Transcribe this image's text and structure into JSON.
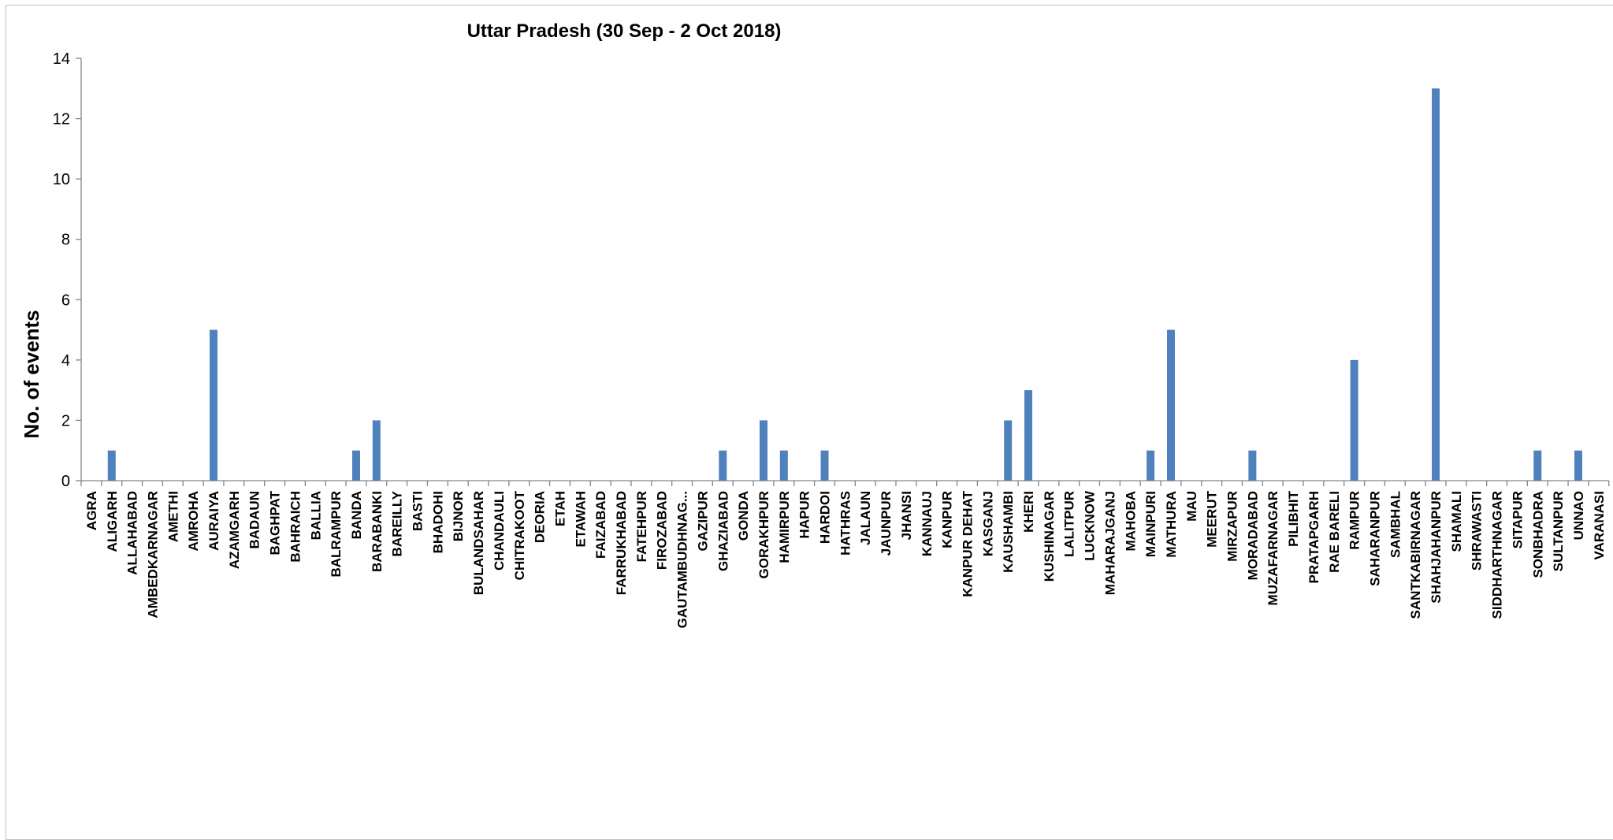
{
  "chart_data": {
    "type": "bar",
    "title": "Uttar Pradesh (30 Sep - 2 Oct 2018)",
    "xlabel": "",
    "ylabel": "No. of events",
    "ylim": [
      0,
      14
    ],
    "yticks": [
      0,
      2,
      4,
      6,
      8,
      10,
      12,
      14
    ],
    "grid": false,
    "legend": "none",
    "bar_color": "#4f81bd",
    "categories": [
      "AGRA",
      "ALIGARH",
      "ALLAHABAD",
      "AMBEDKARNAGAR",
      "AMETHI",
      "AMROHA",
      "AURAIYA",
      "AZAMGARH",
      "BADAUN",
      "BAGHPAT",
      "BAHRAICH",
      "BALLIA",
      "BALRAMPUR",
      "BANDA",
      "BARABANKI",
      "BAREILLY",
      "BASTI",
      "BHADOHI",
      "BIJNOR",
      "BULANDSAHAR",
      "CHANDAULI",
      "CHITRAKOOT",
      "DEORIA",
      "ETAH",
      "ETAWAH",
      "FAIZABAD",
      "FARRUKHABAD",
      "FATEHPUR",
      "FIROZABAD",
      "GAUTAMBUDHNAG...",
      "GAZIPUR",
      "GHAZIABAD",
      "GONDA",
      "GORAKHPUR",
      "HAMIRPUR",
      "HAPUR",
      "HARDOI",
      "HATHRAS",
      "JALAUN",
      "JAUNPUR",
      "JHANSI",
      "KANNAUJ",
      "KANPUR",
      "KANPUR DEHAT",
      "KASGANJ",
      "KAUSHAMBI",
      "KHERI",
      "KUSHINAGAR",
      "LALITPUR",
      "LUCKNOW",
      "MAHARAJGANJ",
      "MAHOBA",
      "MAINPURI",
      "MATHURA",
      "MAU",
      "MEERUT",
      "MIRZAPUR",
      "MORADABAD",
      "MUZAFARNAGAR",
      "PILIBHIT",
      "PRATAPGARH",
      "RAE BARELI",
      "RAMPUR",
      "SAHARANPUR",
      "SAMBHAL",
      "SANTKABIRNAGAR",
      "SHAHJAHANPUR",
      "SHAMALI",
      "SHRAWASTI",
      "SIDDHARTHNAGAR",
      "SITAPUR",
      "SONBHADRA",
      "SULTANPUR",
      "UNNAO",
      "VARANASI"
    ],
    "values": [
      0,
      1,
      0,
      0,
      0,
      0,
      5,
      0,
      0,
      0,
      0,
      0,
      0,
      1,
      2,
      0,
      0,
      0,
      0,
      0,
      0,
      0,
      0,
      0,
      0,
      0,
      0,
      0,
      0,
      0,
      0,
      1,
      0,
      2,
      1,
      0,
      1,
      0,
      0,
      0,
      0,
      0,
      0,
      0,
      0,
      2,
      3,
      0,
      0,
      0,
      0,
      0,
      1,
      5,
      0,
      0,
      0,
      1,
      0,
      0,
      0,
      0,
      4,
      0,
      0,
      0,
      13,
      0,
      0,
      0,
      0,
      1,
      0,
      1,
      0
    ]
  }
}
